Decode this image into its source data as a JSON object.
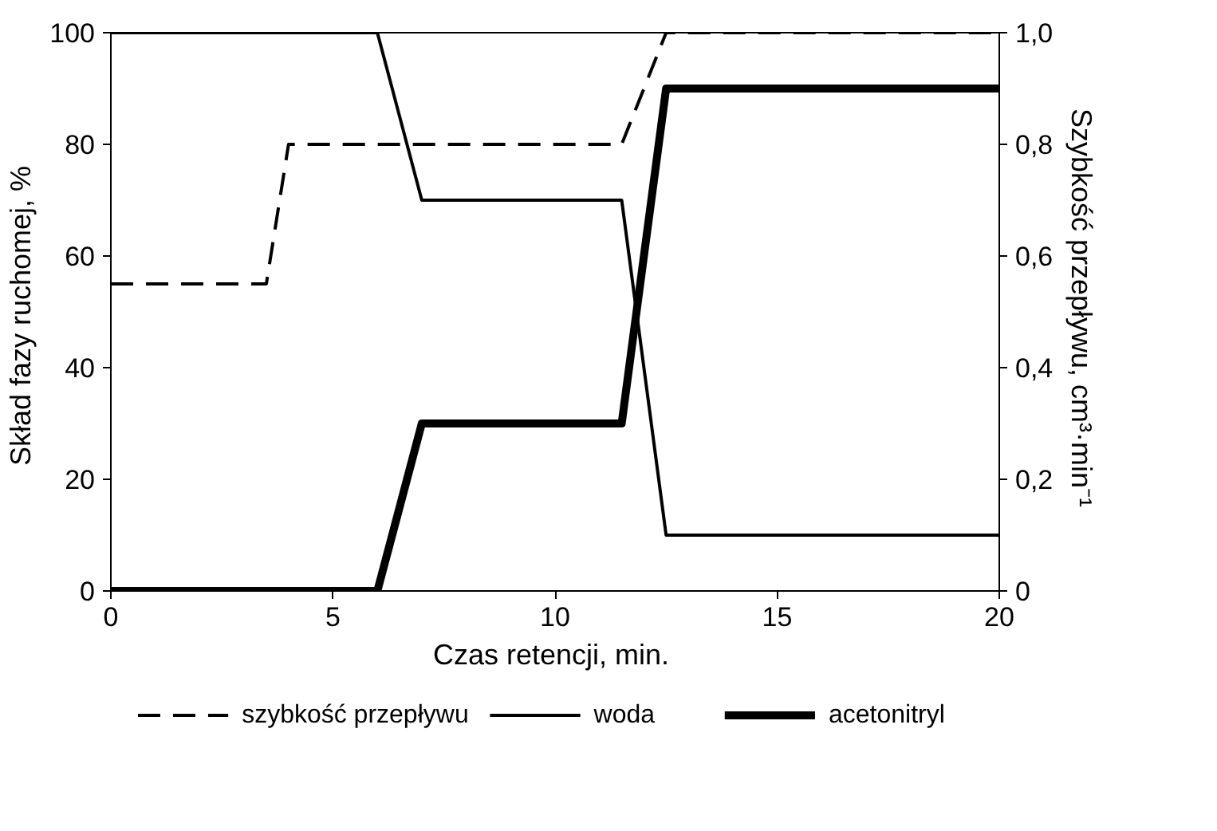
{
  "chart_data": {
    "type": "line",
    "xlabel": "Czas retencji,  min.",
    "ylabel": "Skład fazy ruchomej,  %",
    "y2label": "Szybkość przepływu,  cm³·min⁻¹",
    "xlim": [
      0,
      20
    ],
    "xticks": [
      0,
      5,
      10,
      15,
      20
    ],
    "ylim": [
      0,
      100
    ],
    "yticks": [
      0,
      20,
      40,
      60,
      80,
      100
    ],
    "y2lim": [
      0,
      1
    ],
    "y2ticks": [
      {
        "value": 0,
        "label": "0"
      },
      {
        "value": 0.2,
        "label": "0,2"
      },
      {
        "value": 0.4,
        "label": "0,4"
      },
      {
        "value": 0.6,
        "label": "0,6"
      },
      {
        "value": 0.8,
        "label": "0,8"
      },
      {
        "value": 1,
        "label": "1,0"
      }
    ],
    "grid": false,
    "legend": "bottom",
    "marker": "none",
    "series": [
      {
        "name": "szybkość przepływu",
        "color": "#000000",
        "axis": "y2",
        "line_style": "dashed",
        "x": [
          0,
          3.5,
          4,
          11.5,
          12.5,
          20
        ],
        "values": [
          0.55,
          0.55,
          0.8,
          0.8,
          1,
          1
        ]
      },
      {
        "name": "woda",
        "color": "#000000",
        "line_style": "solid",
        "x": [
          0,
          6,
          7,
          11.5,
          12.5,
          20
        ],
        "values": [
          100,
          100,
          70,
          70,
          10,
          10
        ]
      },
      {
        "name": "acetonitryl",
        "color": "#000000",
        "line_style": "solid",
        "x": [
          0,
          6,
          7,
          11.5,
          12.5,
          20
        ],
        "values": [
          0,
          0,
          30,
          30,
          90,
          90
        ]
      }
    ]
  }
}
